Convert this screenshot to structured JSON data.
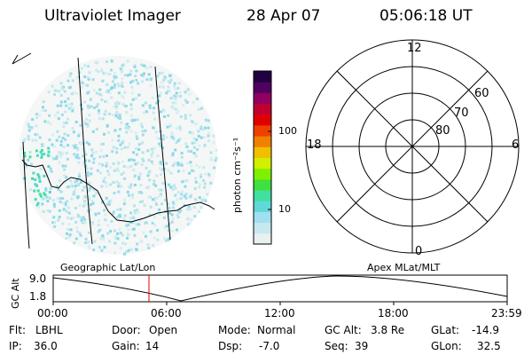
{
  "header": {
    "title": "Ultraviolet Imager",
    "date": "28 Apr 07",
    "time": "05:06:18 UT"
  },
  "colorbar": {
    "unit_label": "photon cm⁻²s⁻¹",
    "ticks": [
      {
        "label": "100",
        "value": 100
      },
      {
        "label": "10",
        "value": 10
      }
    ],
    "colors": [
      "#e8f0f0",
      "#c8e8f0",
      "#a0e0f0",
      "#60d8d8",
      "#40e0a0",
      "#40e040",
      "#80f000",
      "#d0f000",
      "#f0c000",
      "#f08000",
      "#f04000",
      "#e00000",
      "#c00030",
      "#900060",
      "#500060",
      "#200040"
    ]
  },
  "polar_plot": {
    "labels": {
      "top": "12",
      "bottom": "0",
      "left": "18",
      "right": "6"
    },
    "rings": [
      "60",
      "70",
      "80"
    ]
  },
  "labels": {
    "geographic": "Geographic Lat/Lon",
    "apex": "Apex MLat/MLT"
  },
  "altitude_plot": {
    "ylabel": "GC Alt",
    "y_ticks": [
      "9.0",
      "1.8"
    ],
    "x_ticks": [
      "00:00",
      "06:00",
      "12:00",
      "18:00",
      "23:59"
    ],
    "marker_time": "05:06"
  },
  "status": {
    "flt": {
      "label": "Flt:",
      "value": "LBHL"
    },
    "ip": {
      "label": "IP:",
      "value": "36.0"
    },
    "door": {
      "label": "Door:",
      "value": "Open"
    },
    "gain": {
      "label": "Gain:",
      "value": "14"
    },
    "mode": {
      "label": "Mode:",
      "value": "Normal"
    },
    "dsp": {
      "label": "Dsp:",
      "value": "-7.0"
    },
    "gcalt": {
      "label": "GC Alt:",
      "value": "3.8 Re"
    },
    "seq": {
      "label": "Seq:",
      "value": "39"
    },
    "glat": {
      "label": "GLat:",
      "value": "-14.9"
    },
    "glon": {
      "label": "GLon:",
      "value": "32.5"
    }
  },
  "colors": {
    "marker": "#e00000"
  }
}
